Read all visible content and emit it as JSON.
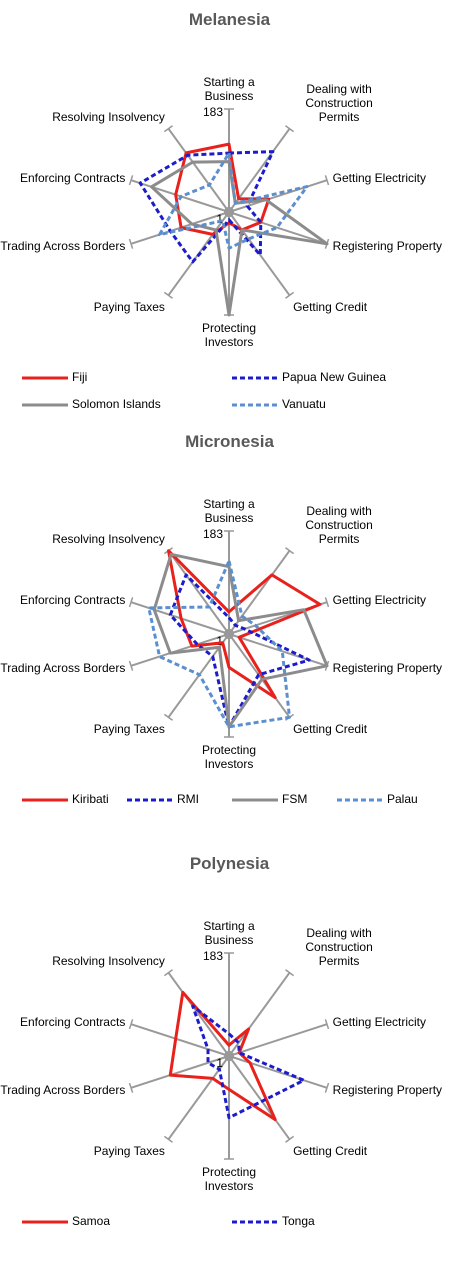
{
  "chart_data": [
    {
      "type": "radar",
      "title": "Melanesia",
      "categories": [
        "Starting a Business",
        "Dealing with Construction Permits",
        "Getting Electricity",
        "Registering Property",
        "Getting Credit",
        "Protecting Investors",
        "Paying Taxes",
        "Trading Across Borders",
        "Enforcing Contracts",
        "Resolving Insolvency"
      ],
      "rlim": [
        1,
        183
      ],
      "rticks": [
        183,
        1
      ],
      "series": [
        {
          "name": "Fiji",
          "color": "#e8211c",
          "dash": false,
          "values": [
            121,
            30,
            75,
            60,
            40,
            20,
            50,
            90,
            100,
            130
          ]
        },
        {
          "name": "Papua New Guinea",
          "color": "#1c1ccc",
          "dash": true,
          "values": [
            105,
            133,
            35,
            60,
            95,
            15,
            110,
            110,
            166,
            125
          ]
        },
        {
          "name": "Solomon Islands",
          "color": "#8c8c8c",
          "dash": false,
          "values": [
            90,
            20,
            70,
            183,
            40,
            183,
            40,
            70,
            145,
            110
          ]
        },
        {
          "name": "Vanuatu",
          "color": "#5b8fd0",
          "dash": true,
          "values": [
            105,
            20,
            146,
            90,
            60,
            65,
            20,
            130,
            90,
            60
          ]
        }
      ]
    },
    {
      "type": "radar",
      "title": "Micronesia",
      "categories": [
        "Starting a Business",
        "Dealing with Construction Permits",
        "Getting Electricity",
        "Registering Property",
        "Getting Credit",
        "Protecting Investors",
        "Paying Taxes",
        "Trading Across Borders",
        "Enforcing Contracts",
        "Resolving Insolvency"
      ],
      "rlim": [
        1,
        183
      ],
      "rticks": [
        183,
        1
      ],
      "series": [
        {
          "name": "Kiribati",
          "color": "#e8211c",
          "dash": false,
          "values": [
            40,
            130,
            170,
            20,
            140,
            60,
            20,
            70,
            90,
            183
          ]
        },
        {
          "name": "RMI",
          "color": "#1c1ccc",
          "dash": true,
          "values": [
            30,
            20,
            30,
            150,
            90,
            165,
            50,
            60,
            110,
            130
          ]
        },
        {
          "name": "FSM",
          "color": "#8c8c8c",
          "dash": false,
          "values": [
            120,
            30,
            140,
            183,
            100,
            165,
            30,
            110,
            140,
            175
          ]
        },
        {
          "name": "Palau",
          "color": "#5b8fd0",
          "dash": true,
          "values": [
            130,
            40,
            50,
            100,
            183,
            165,
            90,
            130,
            150,
            60
          ]
        }
      ]
    },
    {
      "type": "radar",
      "title": "Polynesia",
      "categories": [
        "Starting a Business",
        "Dealing with Construction Permits",
        "Getting Electricity",
        "Registering Property",
        "Getting Credit",
        "Protecting Investors",
        "Paying Taxes",
        "Trading Across Borders",
        "Enforcing Contracts",
        "Resolving Insolvency"
      ],
      "rlim": [
        1,
        183
      ],
      "rticks": [
        183,
        1
      ],
      "series": [
        {
          "name": "Samoa",
          "color": "#e8211c",
          "dash": false,
          "values": [
            20,
            60,
            20,
            40,
            140,
            60,
            50,
            110,
            100,
            140
          ]
        },
        {
          "name": "Tonga",
          "color": "#1c1ccc",
          "dash": true,
          "values": [
            40,
            30,
            20,
            140,
            100,
            110,
            30,
            40,
            40,
            110
          ]
        }
      ]
    }
  ]
}
